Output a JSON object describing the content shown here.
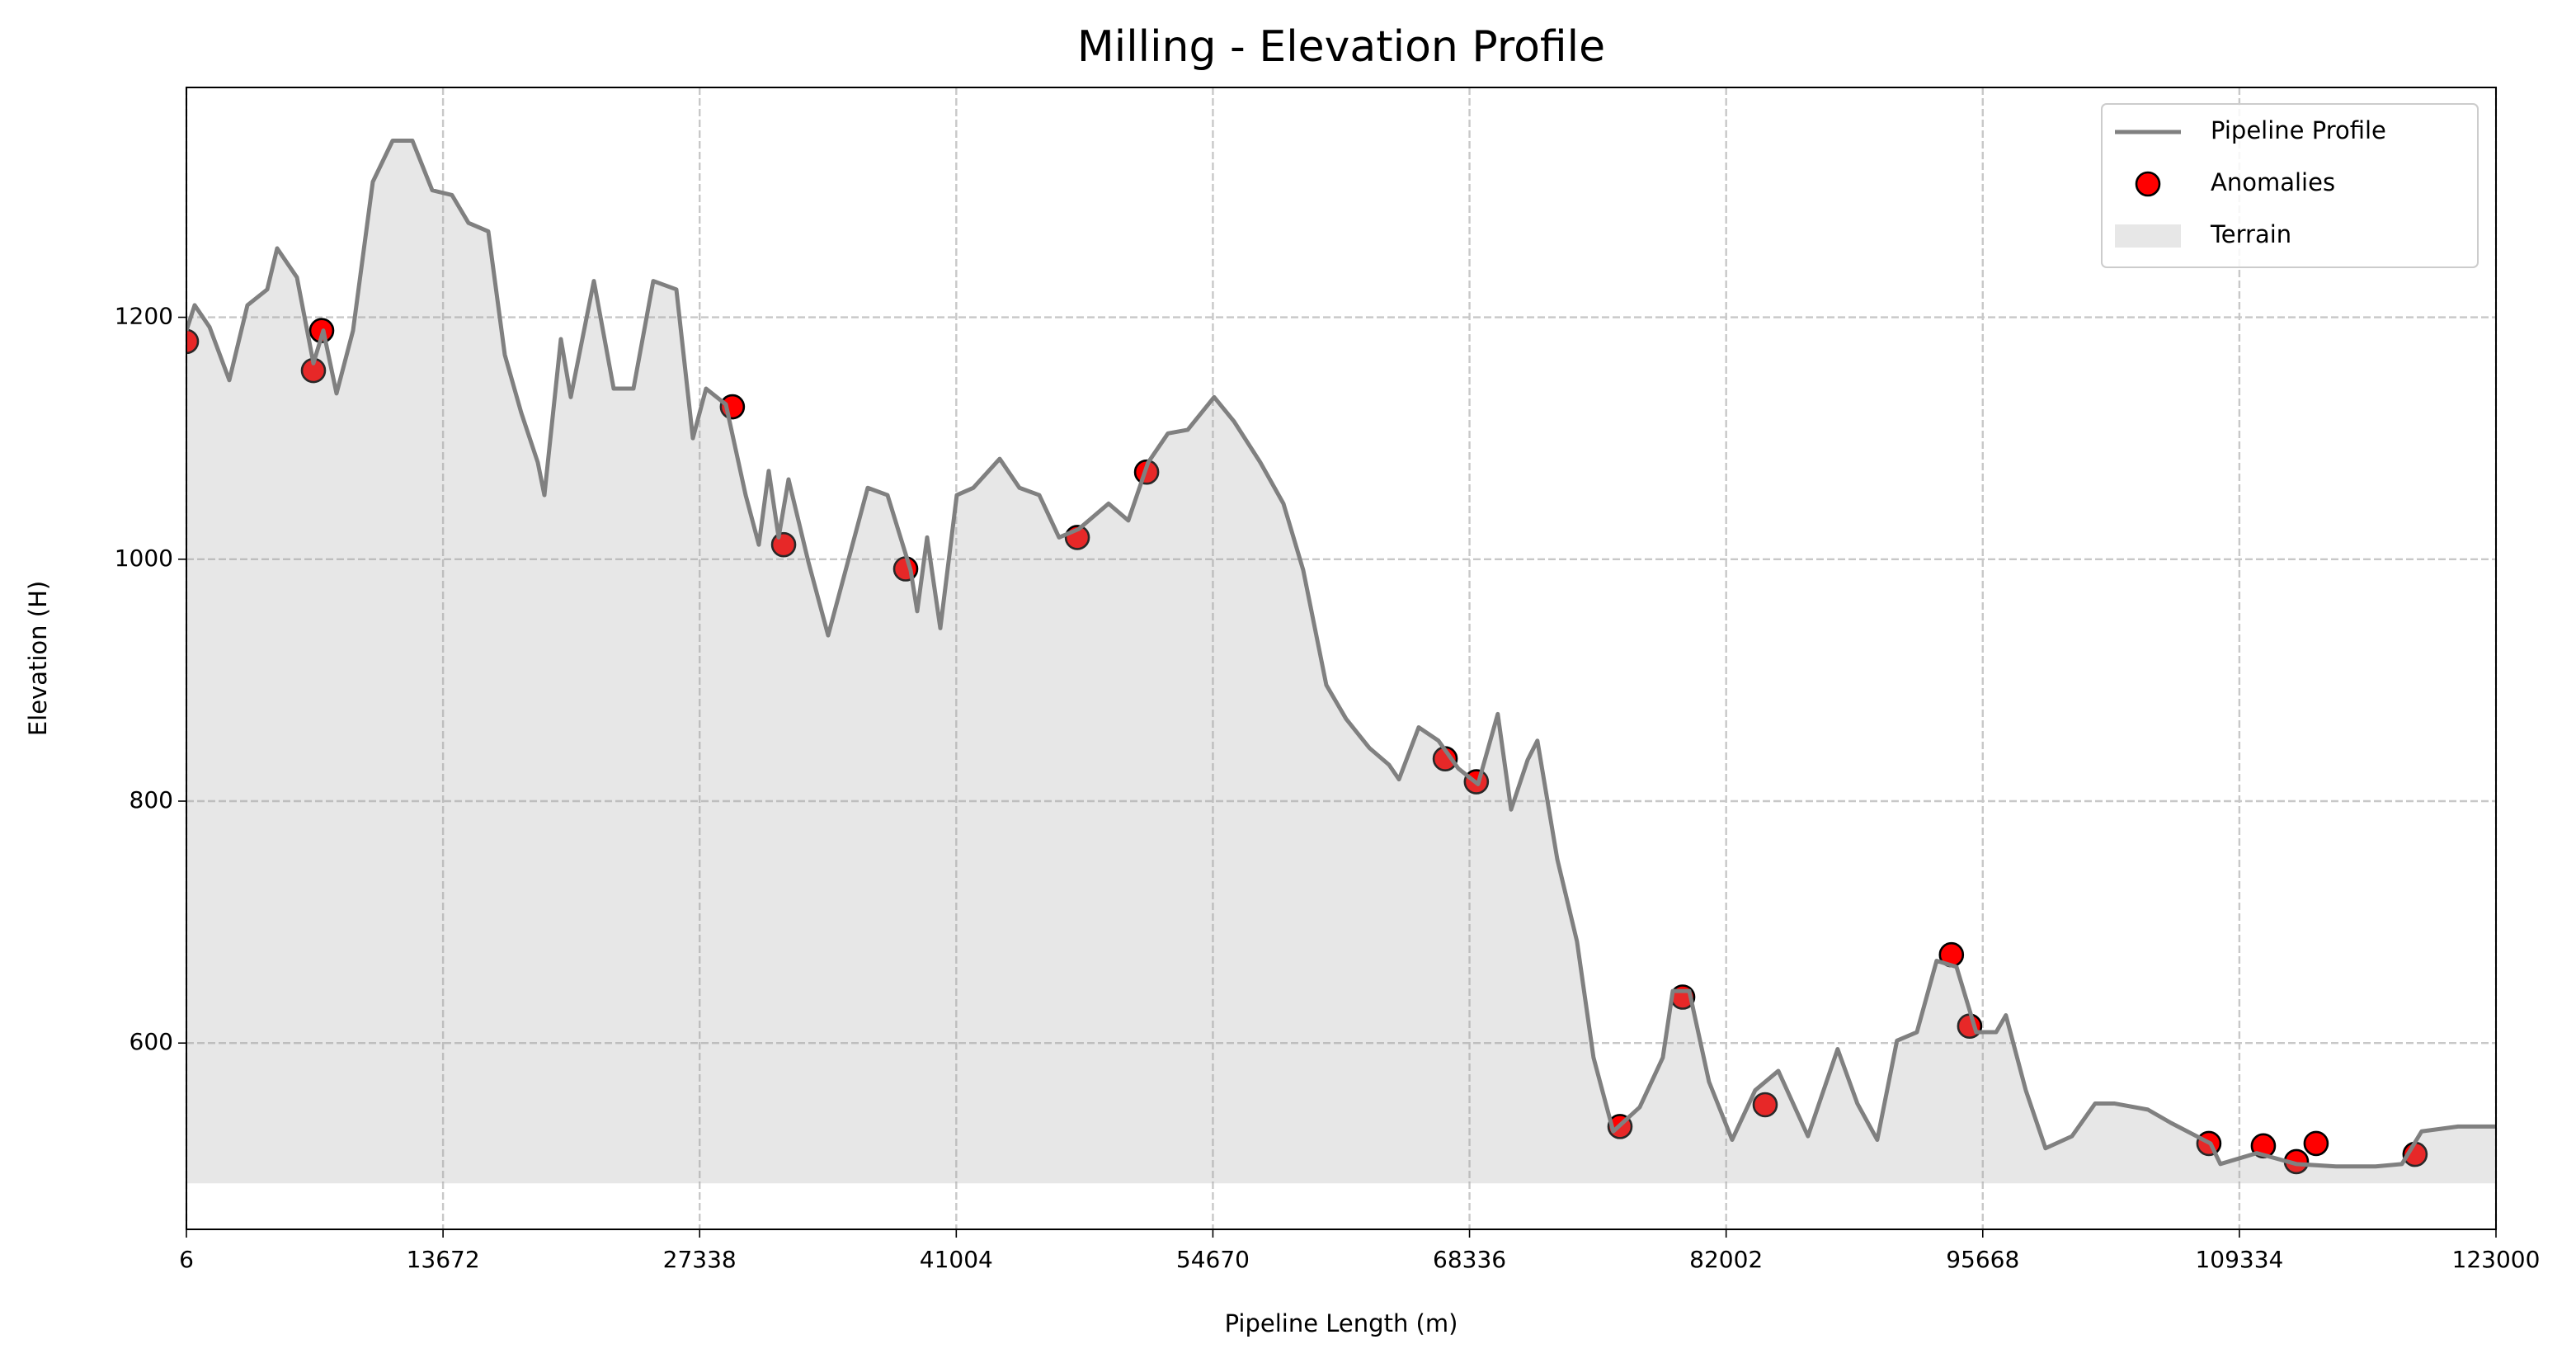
{
  "chart_data": {
    "type": "line",
    "title": "Milling - Elevation Profile",
    "x_label": "Pipeline Length (m)",
    "y_label": "Elevation (H)",
    "xlim": [
      6,
      123000
    ],
    "ylim": [
      446,
      1390
    ],
    "xticks": [
      6,
      13672,
      27338,
      41004,
      54670,
      68336,
      82002,
      95668,
      109334,
      123000
    ],
    "yticks": [
      600,
      800,
      1000,
      1200
    ],
    "grid": true,
    "legend": "upper right",
    "series": [
      {
        "name": "Pipeline Profile",
        "color": "#808080",
        "x": [
          6,
          445,
          1236,
          2290,
          3256,
          4311,
          4838,
          5892,
          6770,
          7298,
          8000,
          8879,
          9933,
          10987,
          12041,
          13096,
          14150,
          15028,
          16082,
          16961,
          17839,
          18718,
          19070,
          19948,
          20475,
          21705,
          22759,
          23813,
          24868,
          26098,
          26976,
          27679,
          28733,
          29787,
          30490,
          31017,
          31544,
          32071,
          33125,
          34180,
          35234,
          36288,
          37342,
          38572,
          38924,
          39451,
          40154,
          41032,
          41910,
          43316,
          44370,
          45424,
          46478,
          47532,
          49113,
          50167,
          51222,
          52276,
          53330,
          54736,
          55790,
          57196,
          58426,
          59480,
          60710,
          61764,
          63000,
          64050,
          64580,
          65630,
          66680,
          67740,
          68790,
          69840,
          70550,
          71430,
          71950,
          73010,
          74060,
          74940,
          75990,
          77400,
          78630,
          79160,
          80040,
          81090,
          82320,
          83550,
          84780,
          86360,
          87940,
          88990,
          90050,
          91100,
          92160,
          93210,
          94270,
          95320,
          96380,
          96900,
          97960,
          99010,
          100420,
          101650,
          102700,
          104460,
          105690,
          107800,
          108320,
          110260,
          112370,
          114480,
          116590,
          117990,
          119040,
          120980,
          123000
        ],
        "values": [
          1189,
          1210,
          1192,
          1148,
          1210,
          1223,
          1257,
          1233,
          1162,
          1189,
          1137,
          1189,
          1312,
          1346,
          1346,
          1305,
          1301,
          1278,
          1271,
          1169,
          1121,
          1080,
          1053,
          1182,
          1134,
          1230,
          1141,
          1141,
          1230,
          1223,
          1100,
          1141,
          1128,
          1053,
          1012,
          1073,
          1018,
          1066,
          998,
          937,
          998,
          1059,
          1053,
          991,
          957,
          1018,
          943,
          1053,
          1059,
          1083,
          1059,
          1053,
          1018,
          1025,
          1046,
          1032,
          1080,
          1104,
          1107,
          1134,
          1114,
          1080,
          1046,
          991,
          896,
          868,
          844,
          830,
          818,
          861,
          850,
          827,
          814,
          872,
          793,
          834,
          850,
          752,
          684,
          588,
          527,
          547,
          588,
          643,
          643,
          568,
          520,
          561,
          577,
          523,
          595,
          550,
          520,
          602,
          609,
          668,
          663,
          609,
          609,
          623,
          561,
          513,
          523,
          550,
          550,
          545,
          534,
          517,
          500,
          509,
          500,
          498,
          498,
          500,
          527,
          531,
          531
        ]
      },
      {
        "name": "Anomalies",
        "type": "scatter",
        "color": "#ff0000",
        "edgecolor": "#000000",
        "x": [
          6,
          7210,
          6770,
          29080,
          31810,
          38310,
          47450,
          51140,
          67040,
          68700,
          76350,
          79690,
          84080,
          94000,
          94970,
          107710,
          110610,
          112370,
          113420,
          118690
        ],
        "values": [
          1180,
          1189,
          1156,
          1126,
          1012,
          992,
          1018,
          1072,
          835,
          816,
          531,
          638,
          549,
          673,
          614,
          517,
          515,
          502,
          517,
          508
        ]
      },
      {
        "name": "Terrain",
        "type": "area",
        "color": "#a0a0a0",
        "base": 484
      }
    ]
  }
}
